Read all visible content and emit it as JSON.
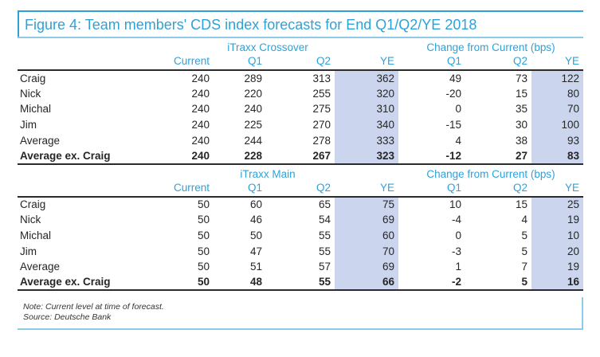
{
  "figure": {
    "title": "Figure 4: Team members' CDS index forecasts for End Q1/Q2/YE 2018",
    "note": "Note: Current level at time of forecast.",
    "source": "Source: Deutsche Bank"
  },
  "colors": {
    "accent": "#2da2da",
    "accent_light": "#8ec9e9",
    "shade": "#ccd5ee",
    "ink": "#262626",
    "rule": "#2b2b2b"
  },
  "tables": [
    {
      "group_label": "iTraxx Crossover",
      "change_label": "Change from Current (bps)",
      "columns": [
        "Current",
        "Q1",
        "Q2",
        "YE",
        "Q1",
        "Q2",
        "YE"
      ],
      "rows": [
        {
          "label": "Craig",
          "values": [
            "240",
            "289",
            "313",
            "362",
            "49",
            "73",
            "122"
          ]
        },
        {
          "label": "Nick",
          "values": [
            "240",
            "220",
            "255",
            "320",
            "-20",
            "15",
            "80"
          ]
        },
        {
          "label": "Michal",
          "values": [
            "240",
            "240",
            "275",
            "310",
            "0",
            "35",
            "70"
          ]
        },
        {
          "label": "Jim",
          "values": [
            "240",
            "225",
            "270",
            "340",
            "-15",
            "30",
            "100"
          ]
        },
        {
          "label": "Average",
          "values": [
            "240",
            "244",
            "278",
            "333",
            "4",
            "38",
            "93"
          ]
        },
        {
          "label": "Average ex. Craig",
          "values": [
            "240",
            "228",
            "267",
            "323",
            "-12",
            "27",
            "83"
          ]
        }
      ]
    },
    {
      "group_label": "iTraxx Main",
      "change_label": "Change from Current (bps)",
      "columns": [
        "Current",
        "Q1",
        "Q2",
        "YE",
        "Q1",
        "Q2",
        "YE"
      ],
      "rows": [
        {
          "label": "Craig",
          "values": [
            "50",
            "60",
            "65",
            "75",
            "10",
            "15",
            "25"
          ]
        },
        {
          "label": "Nick",
          "values": [
            "50",
            "46",
            "54",
            "69",
            "-4",
            "4",
            "19"
          ]
        },
        {
          "label": "Michal",
          "values": [
            "50",
            "50",
            "55",
            "60",
            "0",
            "5",
            "10"
          ]
        },
        {
          "label": "Jim",
          "values": [
            "50",
            "47",
            "55",
            "70",
            "-3",
            "5",
            "20"
          ]
        },
        {
          "label": "Average",
          "values": [
            "50",
            "51",
            "57",
            "69",
            "1",
            "7",
            "19"
          ]
        },
        {
          "label": "Average ex. Craig",
          "values": [
            "50",
            "48",
            "55",
            "66",
            "-2",
            "5",
            "16"
          ]
        }
      ]
    }
  ]
}
